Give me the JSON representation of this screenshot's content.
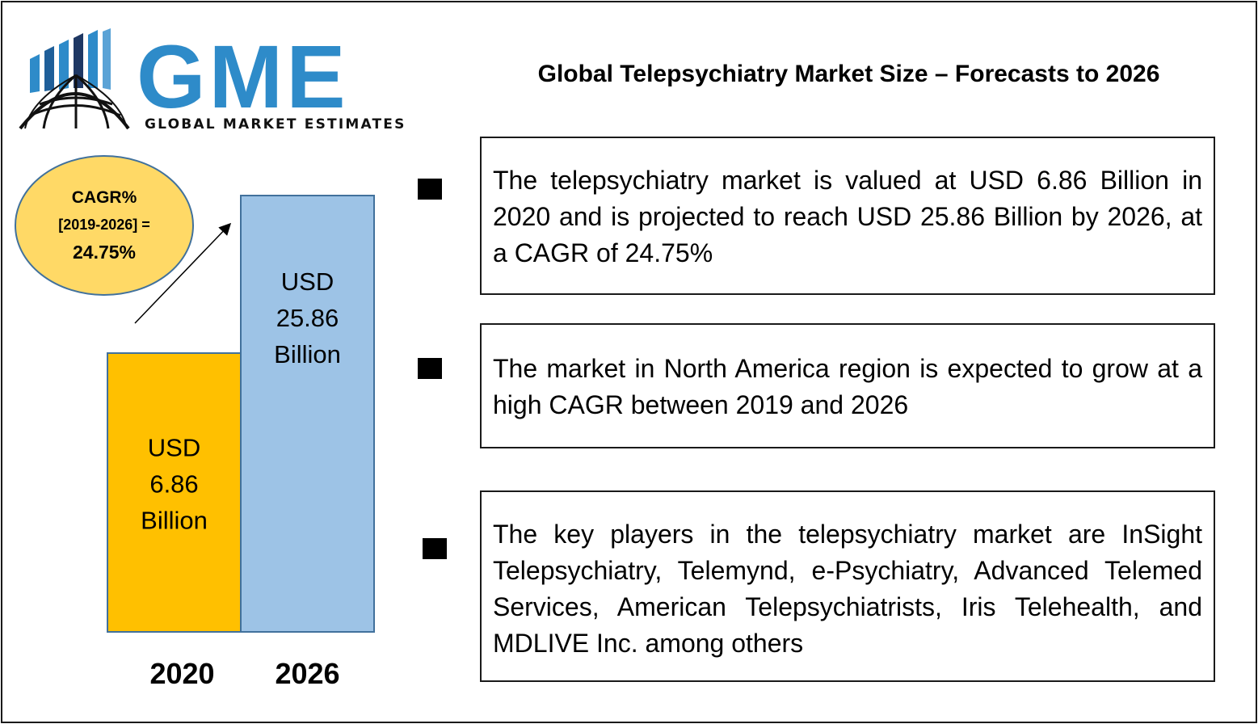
{
  "logo": {
    "letters": "GME",
    "subtitle": "GLOBAL MARKET ESTIMATES"
  },
  "title": "Global Telepsychiatry Market Size – Forecasts to 2026",
  "cagr_badge": {
    "line1": "CAGR%",
    "line2": "[2019-2026] =",
    "line3": "24.75%"
  },
  "chart_data": {
    "type": "bar",
    "categories": [
      "2020",
      "2026"
    ],
    "values": [
      6.86,
      25.86
    ],
    "unit": "USD Billion",
    "data_labels": [
      [
        "USD",
        "6.86",
        "Billion"
      ],
      [
        "USD",
        "25.86",
        "Billion"
      ]
    ],
    "colors": [
      "#FFC000",
      "#9DC3E6"
    ],
    "title": "",
    "xlabel": "",
    "ylabel": ""
  },
  "bullets": [
    {
      "text": "The telepsychiatry market is valued at USD 6.86 Billion in 2020 and is projected to reach USD 25.86 Billion by 2026, at a CAGR of 24.75%"
    },
    {
      "text": "The market in North America region is expected to grow at a high CAGR between 2019 and 2026"
    },
    {
      "text": "The key players in the telepsychiatry market are InSight Telepsychiatry, Telemynd, e-Psychiatry, Advanced Telemed Services, American Telepsychiatrists, Iris Telehealth, and MDLIVE Inc.  among others"
    }
  ],
  "colors": {
    "logo_blue": "#2E8BC9",
    "logo_dark": "#1F3864",
    "badge_fill": "#FFD966",
    "badge_stroke": "#41719C"
  }
}
